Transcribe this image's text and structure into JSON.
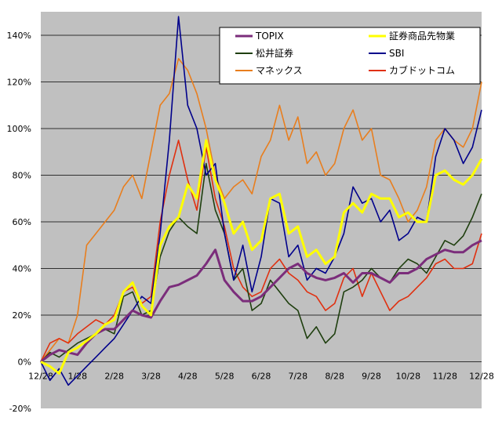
{
  "chart_data": {
    "type": "line",
    "title": "",
    "xlabel": "",
    "ylabel": "",
    "ylim": [
      -20,
      140
    ],
    "yticks": [
      "-20%",
      "0%",
      "20%",
      "40%",
      "60%",
      "80%",
      "100%",
      "120%",
      "140%"
    ],
    "xticks": [
      "12/28",
      "1/28",
      "2/28",
      "3/28",
      "4/28",
      "5/28",
      "6/28",
      "7/28",
      "8/28",
      "9/28",
      "10/28",
      "11/28",
      "12/28"
    ],
    "grid": "horizontal",
    "plot_background": "#c0c0c0",
    "legend_position": "top-right",
    "x_months": [
      0,
      0.25,
      0.5,
      0.75,
      1,
      1.25,
      1.5,
      1.75,
      2,
      2.25,
      2.5,
      2.75,
      3,
      3.25,
      3.5,
      3.75,
      4,
      4.25,
      4.5,
      4.75,
      5,
      5.25,
      5.5,
      5.75,
      6,
      6.25,
      6.5,
      6.75,
      7,
      7.25,
      7.5,
      7.75,
      8,
      8.25,
      8.5,
      8.75,
      9,
      9.25,
      9.5,
      9.75,
      10,
      10.25,
      10.5,
      10.75,
      11,
      11.25,
      11.5,
      11.75,
      12
    ],
    "series": [
      {
        "name": "TOPIX",
        "color": "#7b2d7b",
        "width": 3,
        "values": [
          0,
          3,
          5,
          4,
          3,
          8,
          12,
          14,
          14,
          18,
          22,
          20,
          19,
          26,
          32,
          33,
          35,
          37,
          42,
          48,
          35,
          30,
          26,
          26,
          28,
          32,
          36,
          40,
          42,
          38,
          36,
          35,
          36,
          38,
          34,
          38,
          38,
          36,
          34,
          38,
          38,
          40,
          44,
          46,
          48,
          47,
          47,
          50,
          52
        ]
      },
      {
        "name": "証券商品先物業",
        "color": "#ffff00",
        "width": 3,
        "values": [
          0,
          -2,
          -5,
          4,
          6,
          9,
          12,
          16,
          18,
          30,
          34,
          24,
          20,
          50,
          58,
          62,
          76,
          70,
          95,
          78,
          68,
          55,
          60,
          48,
          52,
          70,
          72,
          55,
          58,
          45,
          48,
          42,
          45,
          64,
          68,
          64,
          72,
          70,
          70,
          62,
          64,
          60,
          60,
          80,
          82,
          78,
          76,
          80,
          87
        ]
      },
      {
        "name": "松井証券",
        "color": "#1f3f0f",
        "width": 1.6,
        "values": [
          0,
          4,
          2,
          5,
          8,
          10,
          12,
          14,
          12,
          28,
          30,
          20,
          22,
          45,
          56,
          62,
          58,
          55,
          85,
          65,
          55,
          35,
          40,
          22,
          25,
          35,
          30,
          25,
          22,
          10,
          15,
          8,
          12,
          30,
          32,
          35,
          40,
          36,
          34,
          40,
          44,
          42,
          38,
          45,
          52,
          50,
          54,
          62,
          72
        ]
      },
      {
        "name": "SBI",
        "color": "#00008b",
        "width": 1.6,
        "values": [
          0,
          -8,
          -3,
          -10,
          -6,
          -2,
          2,
          6,
          10,
          16,
          22,
          28,
          25,
          55,
          95,
          148,
          110,
          100,
          80,
          85,
          55,
          35,
          50,
          30,
          45,
          70,
          68,
          45,
          50,
          35,
          40,
          38,
          45,
          55,
          75,
          68,
          70,
          60,
          65,
          52,
          55,
          62,
          60,
          88,
          100,
          95,
          85,
          92,
          108
        ]
      },
      {
        "name": "マネックス",
        "color": "#e87e1e",
        "width": 1.6,
        "values": [
          0,
          5,
          10,
          8,
          20,
          50,
          55,
          60,
          65,
          75,
          80,
          70,
          90,
          110,
          115,
          130,
          125,
          115,
          100,
          80,
          70,
          75,
          78,
          72,
          88,
          95,
          110,
          95,
          105,
          85,
          90,
          80,
          85,
          100,
          108,
          95,
          100,
          80,
          78,
          70,
          60,
          65,
          75,
          95,
          100,
          95,
          92,
          100,
          120
        ]
      },
      {
        "name": "カブドットコム",
        "color": "#e03010",
        "width": 1.6,
        "values": [
          0,
          8,
          10,
          8,
          12,
          15,
          18,
          16,
          20,
          30,
          32,
          25,
          28,
          60,
          80,
          95,
          78,
          65,
          92,
          70,
          58,
          40,
          32,
          28,
          30,
          40,
          44,
          38,
          35,
          30,
          28,
          22,
          25,
          36,
          40,
          28,
          38,
          30,
          22,
          26,
          28,
          32,
          36,
          42,
          44,
          40,
          40,
          42,
          55
        ]
      }
    ]
  }
}
